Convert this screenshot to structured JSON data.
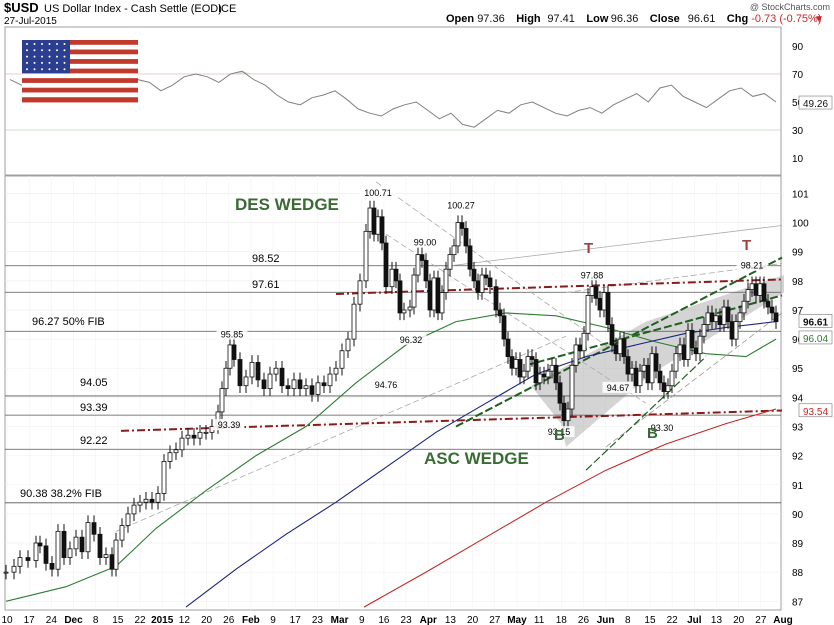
{
  "header": {
    "symbol": "$USD",
    "name": "US Dollar Index - Cash Settle (EOD)",
    "exchange": "ICE",
    "date": "27-Jul-2015",
    "watermark": "@ StockCharts.com",
    "ohlc": [
      {
        "label": "Open",
        "value": "97.36"
      },
      {
        "label": "High",
        "value": "97.41"
      },
      {
        "label": "Low",
        "value": "96.36"
      },
      {
        "label": "Close",
        "value": "96.61"
      },
      {
        "label": "Chg",
        "value": "-0.73 (-0.75%)"
      }
    ],
    "chg_arrow": "▼"
  },
  "colors": {
    "candle": "#111111",
    "sma50": "#2e7d32",
    "sma100": "#1a237e",
    "sma200": "#c62828",
    "resistance": "#8b1a1a",
    "wedge_green": "#1f5f1f",
    "label_green": "#3a6b35",
    "label_red": "#a04040",
    "rsi_line": "#808080",
    "rsi_fill": "#cfe3cf",
    "shade": "#b0b0b0"
  },
  "annotations": {
    "des_wedge": "DES WEDGE",
    "asc_wedge": "ASC WEDGE",
    "t1": "T",
    "t2": "T",
    "b1": "B",
    "b2": "B",
    "fib50": "96.27  50% FIB",
    "fib382": "90.38  38.2% FIB",
    "lvl_9852": "98.52",
    "lvl_9761": "97.61",
    "lvl_9405": "94.05",
    "lvl_9339": "93.39",
    "lvl_9222": "92.22"
  },
  "badges": {
    "rsi": "49.26",
    "close": "96.61",
    "sma50": "96.04",
    "sma200": "93.54"
  },
  "rsi": {
    "ticks": [
      "90",
      "70",
      "50",
      "30",
      "10"
    ],
    "tick_values": [
      90,
      70,
      50,
      30,
      10
    ],
    "overbought": 70,
    "oversold": 30,
    "values": [
      66,
      62,
      60,
      65,
      70,
      64,
      59,
      63,
      66,
      62,
      60,
      66,
      64,
      58,
      62,
      68,
      70,
      68,
      64,
      70,
      72,
      66,
      62,
      55,
      50,
      48,
      53,
      55,
      58,
      52,
      45,
      42,
      40,
      45,
      48,
      50,
      44,
      38,
      42,
      34,
      32,
      38,
      44,
      42,
      48,
      50,
      46,
      42,
      40,
      44,
      46,
      42,
      48,
      52,
      56,
      50,
      60,
      62,
      54,
      50,
      46,
      52,
      58,
      60,
      54,
      56,
      50
    ]
  },
  "chart_data": {
    "type": "candlestick",
    "title": "$USD US Dollar Index - Cash Settle (EOD)",
    "ylim": [
      86.7,
      101.6
    ],
    "y_ticks": [
      87,
      88,
      89,
      90,
      91,
      92,
      93,
      94,
      95,
      96,
      97,
      98,
      99,
      100,
      101
    ],
    "x_ticks": [
      "10",
      "17",
      "24",
      "Dec",
      "8",
      "15",
      "22",
      "2015",
      "12",
      "20",
      "26",
      "Feb",
      "9",
      "17",
      "23",
      "Mar",
      "9",
      "16",
      "23",
      "Apr",
      "13",
      "20",
      "27",
      "May",
      "11",
      "18",
      "26",
      "Jun",
      "8",
      "15",
      "22",
      "Jul",
      "13",
      "20",
      "27",
      "Aug"
    ],
    "points": [
      [
        0,
        88.0
      ],
      [
        8,
        88.2
      ],
      [
        14,
        88.5
      ],
      [
        22,
        88.4
      ],
      [
        30,
        89.0
      ],
      [
        34,
        88.9
      ],
      [
        40,
        88.3
      ],
      [
        46,
        88.1
      ],
      [
        52,
        89.4
      ],
      [
        58,
        88.5
      ],
      [
        64,
        88.8
      ],
      [
        70,
        89.2
      ],
      [
        76,
        88.7
      ],
      [
        82,
        89.7
      ],
      [
        88,
        89.3
      ],
      [
        94,
        88.5
      ],
      [
        100,
        88.6
      ],
      [
        106,
        88.1
      ],
      [
        110,
        89.1
      ],
      [
        116,
        89.6
      ],
      [
        122,
        90.0
      ],
      [
        128,
        90.3
      ],
      [
        134,
        90.4
      ],
      [
        140,
        90.5
      ],
      [
        146,
        90.4
      ],
      [
        152,
        90.7
      ],
      [
        158,
        91.8
      ],
      [
        164,
        92.1
      ],
      [
        170,
        92.2
      ],
      [
        176,
        92.6
      ],
      [
        182,
        92.7
      ],
      [
        188,
        92.6
      ],
      [
        194,
        92.8
      ],
      [
        200,
        92.8
      ],
      [
        206,
        93.0
      ],
      [
        212,
        93.5
      ],
      [
        216,
        94.3
      ],
      [
        220,
        95.0
      ],
      [
        224,
        95.8
      ],
      [
        228,
        95.3
      ],
      [
        234,
        94.4
      ],
      [
        240,
        94.7
      ],
      [
        246,
        95.2
      ],
      [
        252,
        94.6
      ],
      [
        258,
        94.3
      ],
      [
        264,
        94.8
      ],
      [
        270,
        95.0
      ],
      [
        276,
        94.4
      ],
      [
        282,
        94.3
      ],
      [
        288,
        94.6
      ],
      [
        294,
        94.3
      ],
      [
        300,
        94.4
      ],
      [
        306,
        94.1
      ],
      [
        312,
        94.5
      ],
      [
        318,
        94.4
      ],
      [
        324,
        94.8
      ],
      [
        330,
        95.0
      ],
      [
        336,
        95.6
      ],
      [
        342,
        96.0
      ],
      [
        348,
        97.2
      ],
      [
        354,
        98.0
      ],
      [
        360,
        99.7
      ],
      [
        364,
        100.5
      ],
      [
        368,
        99.6
      ],
      [
        372,
        100.2
      ],
      [
        376,
        99.3
      ],
      [
        380,
        97.8
      ],
      [
        386,
        98.4
      ],
      [
        390,
        98.0
      ],
      [
        394,
        96.9
      ],
      [
        398,
        97.0
      ],
      [
        404,
        97.1
      ],
      [
        408,
        98.2
      ],
      [
        412,
        98.9
      ],
      [
        416,
        98.7
      ],
      [
        420,
        98.0
      ],
      [
        424,
        97.0
      ],
      [
        428,
        98.1
      ],
      [
        432,
        96.9
      ],
      [
        436,
        97.6
      ],
      [
        440,
        98.4
      ],
      [
        444,
        98.9
      ],
      [
        448,
        99.2
      ],
      [
        452,
        100.0
      ],
      [
        456,
        99.8
      ],
      [
        460,
        99.2
      ],
      [
        464,
        98.4
      ],
      [
        468,
        98.0
      ],
      [
        472,
        97.6
      ],
      [
        476,
        98.2
      ],
      [
        480,
        98.1
      ],
      [
        484,
        97.8
      ],
      [
        490,
        97.0
      ],
      [
        494,
        96.8
      ],
      [
        498,
        96.0
      ],
      [
        502,
        95.4
      ],
      [
        506,
        95.0
      ],
      [
        510,
        95.3
      ],
      [
        514,
        94.7
      ],
      [
        518,
        94.9
      ],
      [
        522,
        95.4
      ],
      [
        526,
        95.3
      ],
      [
        530,
        94.5
      ],
      [
        534,
        94.8
      ],
      [
        538,
        94.7
      ],
      [
        542,
        94.9
      ],
      [
        546,
        95.1
      ],
      [
        550,
        94.5
      ],
      [
        554,
        93.8
      ],
      [
        558,
        93.2
      ],
      [
        562,
        93.6
      ],
      [
        566,
        95.1
      ],
      [
        570,
        95.8
      ],
      [
        574,
        95.6
      ],
      [
        578,
        96.2
      ],
      [
        582,
        97.5
      ],
      [
        586,
        97.8
      ],
      [
        590,
        97.4
      ],
      [
        594,
        97.0
      ],
      [
        598,
        97.6
      ],
      [
        602,
        96.5
      ],
      [
        606,
        95.8
      ],
      [
        610,
        95.5
      ],
      [
        614,
        96.0
      ],
      [
        618,
        95.4
      ],
      [
        622,
        94.8
      ],
      [
        626,
        95.0
      ],
      [
        630,
        94.4
      ],
      [
        634,
        94.9
      ],
      [
        638,
        95.1
      ],
      [
        642,
        94.5
      ],
      [
        646,
        95.5
      ],
      [
        650,
        94.9
      ],
      [
        654,
        94.5
      ],
      [
        658,
        94.2
      ],
      [
        662,
        94.4
      ],
      [
        666,
        94.9
      ],
      [
        670,
        95.5
      ],
      [
        674,
        95.8
      ],
      [
        678,
        95.3
      ],
      [
        682,
        96.3
      ],
      [
        686,
        95.7
      ],
      [
        690,
        95.5
      ],
      [
        694,
        96.1
      ],
      [
        698,
        96.5
      ],
      [
        702,
        96.9
      ],
      [
        706,
        96.6
      ],
      [
        710,
        96.8
      ],
      [
        714,
        96.5
      ],
      [
        718,
        97.1
      ],
      [
        722,
        96.6
      ],
      [
        726,
        96.0
      ],
      [
        730,
        96.6
      ],
      [
        734,
        96.9
      ],
      [
        738,
        97.3
      ],
      [
        742,
        97.7
      ],
      [
        746,
        97.9
      ],
      [
        750,
        97.5
      ],
      [
        754,
        97.9
      ],
      [
        758,
        97.3
      ],
      [
        762,
        97.1
      ],
      [
        766,
        96.9
      ],
      [
        770,
        96.6
      ]
    ],
    "labels": [
      {
        "text": "100.71",
        "x": 372,
        "y": 100.71
      },
      {
        "text": "100.27",
        "x": 455,
        "y": 100.27
      },
      {
        "text": "99.00",
        "x": 419,
        "y": 99.0
      },
      {
        "text": "98.21",
        "x": 746,
        "y": 98.21
      },
      {
        "text": "97.88",
        "x": 586,
        "y": 97.88
      },
      {
        "text": "96.32",
        "x": 405,
        "y": 96.32
      },
      {
        "text": "95.85",
        "x": 226,
        "y": 95.85
      },
      {
        "text": "94.76",
        "x": 380,
        "y": 94.76
      },
      {
        "text": "94.67",
        "x": 612,
        "y": 94.67
      },
      {
        "text": "93.39",
        "x": 223,
        "y": 93.39
      },
      {
        "text": "93.15",
        "x": 553,
        "y": 93.15
      },
      {
        "text": "93.30",
        "x": 656,
        "y": 93.3
      }
    ],
    "series": [
      {
        "name": "sma50",
        "points": [
          [
            0,
            87.0
          ],
          [
            60,
            87.5
          ],
          [
            110,
            88.2
          ],
          [
            150,
            89.5
          ],
          [
            200,
            90.8
          ],
          [
            250,
            92.0
          ],
          [
            300,
            93.0
          ],
          [
            350,
            94.5
          ],
          [
            400,
            95.8
          ],
          [
            450,
            96.6
          ],
          [
            500,
            96.9
          ],
          [
            550,
            96.8
          ],
          [
            600,
            96.4
          ],
          [
            650,
            95.9
          ],
          [
            700,
            95.5
          ],
          [
            740,
            95.4
          ],
          [
            770,
            96.0
          ]
        ]
      },
      {
        "name": "sma100",
        "points": [
          [
            180,
            86.8
          ],
          [
            230,
            88.1
          ],
          [
            280,
            89.3
          ],
          [
            330,
            90.4
          ],
          [
            380,
            91.6
          ],
          [
            430,
            92.8
          ],
          [
            480,
            93.8
          ],
          [
            530,
            94.8
          ],
          [
            580,
            95.4
          ],
          [
            630,
            95.8
          ],
          [
            680,
            96.2
          ],
          [
            720,
            96.4
          ],
          [
            770,
            96.6
          ]
        ]
      },
      {
        "name": "sma200",
        "points": [
          [
            358,
            86.8
          ],
          [
            420,
            88.0
          ],
          [
            480,
            89.2
          ],
          [
            540,
            90.4
          ],
          [
            600,
            91.5
          ],
          [
            660,
            92.4
          ],
          [
            720,
            93.1
          ],
          [
            770,
            93.6
          ]
        ]
      }
    ],
    "hlines": [
      98.52,
      97.61,
      96.27,
      94.05,
      93.39,
      92.22,
      90.38
    ]
  }
}
